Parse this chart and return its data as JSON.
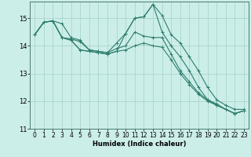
{
  "xlabel": "Humidex (Indice chaleur)",
  "ylabel": "",
  "bg_color": "#cceee8",
  "grid_color": "#aad4ce",
  "line_color": "#2e7d6e",
  "xlim": [
    -0.5,
    23.5
  ],
  "ylim": [
    11,
    15.6
  ],
  "yticks": [
    11,
    12,
    13,
    14,
    15
  ],
  "xticks": [
    0,
    1,
    2,
    3,
    4,
    5,
    6,
    7,
    8,
    9,
    10,
    11,
    12,
    13,
    14,
    15,
    16,
    17,
    18,
    19,
    20,
    21,
    22,
    23
  ],
  "lines": [
    [
      14.4,
      14.85,
      14.9,
      14.8,
      14.3,
      14.2,
      13.85,
      13.8,
      13.75,
      14.1,
      14.45,
      15.0,
      15.05,
      15.5,
      15.1,
      14.4,
      14.1,
      13.6,
      13.1,
      12.5,
      12.05,
      11.85,
      11.7,
      11.7
    ],
    [
      14.4,
      14.85,
      14.9,
      14.3,
      14.25,
      14.15,
      13.85,
      13.8,
      13.75,
      13.9,
      14.0,
      14.5,
      14.35,
      14.3,
      14.3,
      13.7,
      13.1,
      12.7,
      12.3,
      12.05,
      11.9,
      11.7,
      11.55,
      11.65
    ],
    [
      14.4,
      14.85,
      14.9,
      14.3,
      14.2,
      13.85,
      13.8,
      13.75,
      13.7,
      13.8,
      13.85,
      14.0,
      14.1,
      14.0,
      13.95,
      13.5,
      13.0,
      12.6,
      12.25,
      12.0,
      11.85,
      11.7,
      11.55,
      11.65
    ],
    [
      14.4,
      14.85,
      14.9,
      14.3,
      14.2,
      13.85,
      13.8,
      13.75,
      13.7,
      13.8,
      14.45,
      15.0,
      15.05,
      15.5,
      14.5,
      14.0,
      13.6,
      13.1,
      12.5,
      12.05,
      11.85,
      11.7,
      11.55,
      11.65
    ]
  ],
  "figsize": [
    3.2,
    2.0
  ],
  "dpi": 100
}
